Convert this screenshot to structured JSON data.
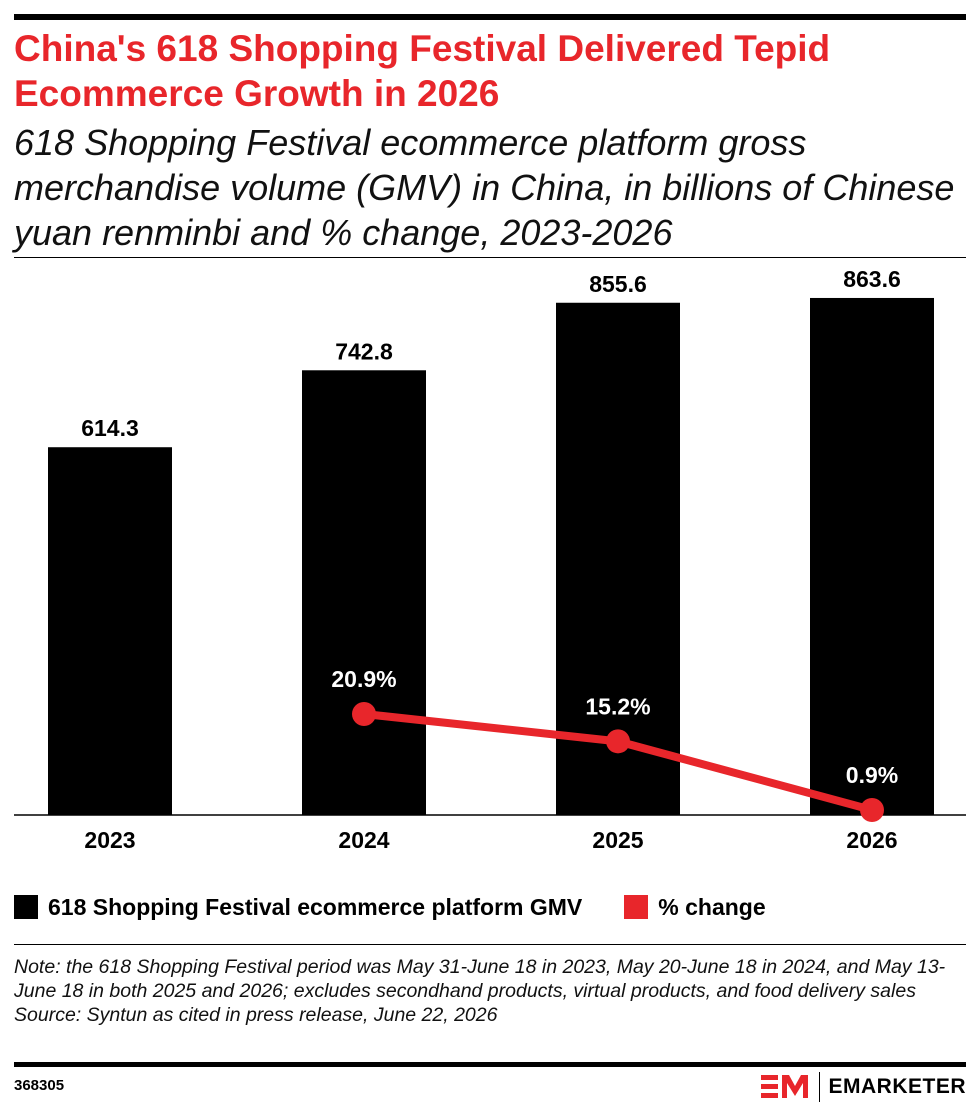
{
  "header": {
    "title": "China's 618 Shopping Festival Delivered Tepid Ecommerce Growth in 2026",
    "subtitle": "618 Shopping Festival ecommerce platform gross merchandise volume (GMV) in China, in billions of Chinese yuan renminbi and % change, 2023-2026"
  },
  "chart_data": {
    "type": "bar",
    "categories": [
      "2023",
      "2024",
      "2025",
      "2026"
    ],
    "series": [
      {
        "name": "618 Shopping Festival ecommerce platform GMV",
        "type": "bar",
        "color": "#000000",
        "values": [
          614.3,
          742.8,
          855.6,
          863.6
        ],
        "labels": [
          "614.3",
          "742.8",
          "855.6",
          "863.6"
        ]
      },
      {
        "name": "% change",
        "type": "line",
        "color": "#e8262b",
        "values": [
          null,
          20.9,
          15.2,
          0.9
        ],
        "labels": [
          "",
          "20.9%",
          "15.2%",
          "0.9%"
        ]
      }
    ],
    "grid": false,
    "legend_position": "bottom-left"
  },
  "legend": {
    "items": [
      {
        "label": "618 Shopping Festival ecommerce platform GMV",
        "color": "#000000"
      },
      {
        "label": "% change",
        "color": "#e8262b"
      }
    ]
  },
  "footer": {
    "note": "Note: the 618 Shopping Festival period was May 31-June 18 in 2023, May 20-June 18 in 2024, and May 13-June 18 in both 2025 and 2026; excludes secondhand products, virtual products, and food delivery sales",
    "source": "Source: Syntun as cited in press release, June 22, 2026",
    "chart_id": "368305",
    "brand": "EMARKETER"
  }
}
